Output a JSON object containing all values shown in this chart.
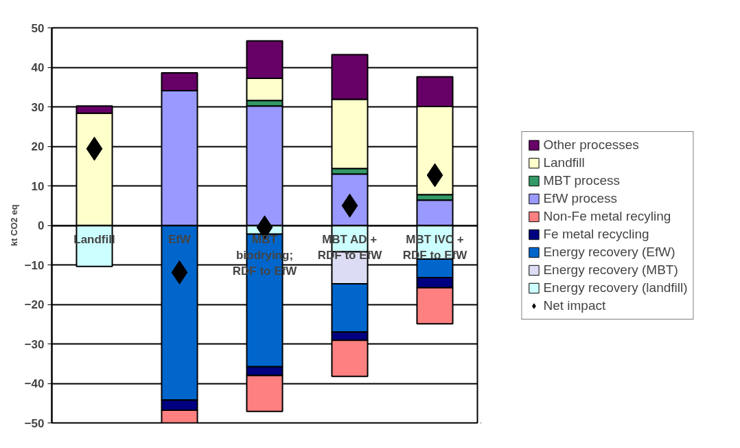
{
  "chart_data": {
    "type": "bar",
    "stacked": true,
    "ylabel": "kt CO2 eq",
    "categories": [
      "Landfill",
      "EfW",
      "MBT biodrying; RDF to EfW",
      "MBT AD + RDF to EfW",
      "MBT IVC + RDF to EfW"
    ],
    "ylim": [
      -50,
      50
    ],
    "yticks": [
      -50,
      -40,
      -30,
      -20,
      -10,
      0,
      10,
      20,
      30,
      40,
      50
    ],
    "grid": "y",
    "legend": "right",
    "series": [
      {
        "name": "Energy recovery (landfill)",
        "color": "#ccffff",
        "values": [
          -10.4,
          null,
          -2.2,
          -6.7,
          -8.5
        ]
      },
      {
        "name": "Energy recovery (MBT)",
        "color": "#dcdcf4",
        "values": [
          null,
          null,
          null,
          -8.1,
          null
        ]
      },
      {
        "name": "Energy recovery (EfW)",
        "color": "#0066cc",
        "values": [
          null,
          -44.2,
          -33.6,
          -12.2,
          -4.7
        ]
      },
      {
        "name": "Fe metal recycling",
        "color": "#000080",
        "values": [
          null,
          -2.6,
          -2.2,
          -2.1,
          -2.6
        ]
      },
      {
        "name": "Non-Fe metal recyling",
        "color": "#ff8080",
        "values": [
          null,
          -3.2,
          -9.1,
          -9.1,
          -9.1
        ]
      },
      {
        "name": "EfW process",
        "color": "#9999ff",
        "values": [
          null,
          34.1,
          30.2,
          13.0,
          6.4
        ]
      },
      {
        "name": "MBT process",
        "color": "#339966",
        "values": [
          null,
          null,
          1.4,
          1.4,
          1.4
        ]
      },
      {
        "name": "Landfill",
        "color": "#ffffcc",
        "values": [
          28.4,
          null,
          5.6,
          17.5,
          22.3
        ]
      },
      {
        "name": "Other processes",
        "color": "#660066",
        "values": [
          1.8,
          4.5,
          9.5,
          11.3,
          7.5
        ]
      },
      {
        "name": "Net impact",
        "type": "scatter",
        "marker": "diamond",
        "color": "#000000",
        "values": [
          19.4,
          -11.9,
          -0.5,
          5.0,
          12.7
        ]
      }
    ]
  }
}
